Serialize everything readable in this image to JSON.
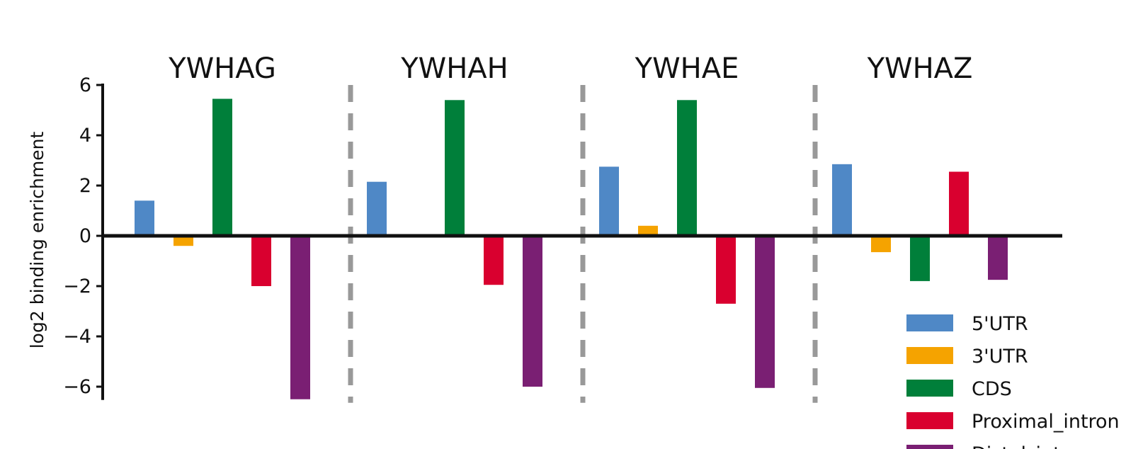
{
  "chart_data": {
    "type": "bar",
    "title": "",
    "xlabel": "",
    "ylabel": "log2 binding enrichment",
    "ylim": [
      -6.5,
      6
    ],
    "yticks": [
      6,
      4,
      2,
      0,
      -2,
      -4,
      -6
    ],
    "ytick_labels": [
      "6",
      "4",
      "2",
      "0",
      "−2",
      "−4",
      "−6"
    ],
    "grid": false,
    "legend_position": "bottom-right",
    "panels": [
      "YWHAG",
      "YWHAH",
      "YWHAE",
      "YWHAZ"
    ],
    "series": [
      {
        "name": "5'UTR",
        "color": "#4f88c6",
        "values": [
          1.4,
          2.15,
          2.75,
          2.85
        ]
      },
      {
        "name": "3'UTR",
        "color": "#f5a300",
        "values": [
          -0.4,
          0,
          0.4,
          -0.65
        ]
      },
      {
        "name": "CDS",
        "color": "#007f3a",
        "values": [
          5.45,
          5.4,
          5.4,
          -1.8
        ]
      },
      {
        "name": "Proximal_intron",
        "color": "#d9002f",
        "values": [
          -2.0,
          -1.95,
          -2.7,
          2.55
        ]
      },
      {
        "name": "Distal_intron",
        "color": "#7a1f73",
        "values": [
          -6.5,
          -6.0,
          -6.05,
          -1.75
        ]
      }
    ]
  }
}
